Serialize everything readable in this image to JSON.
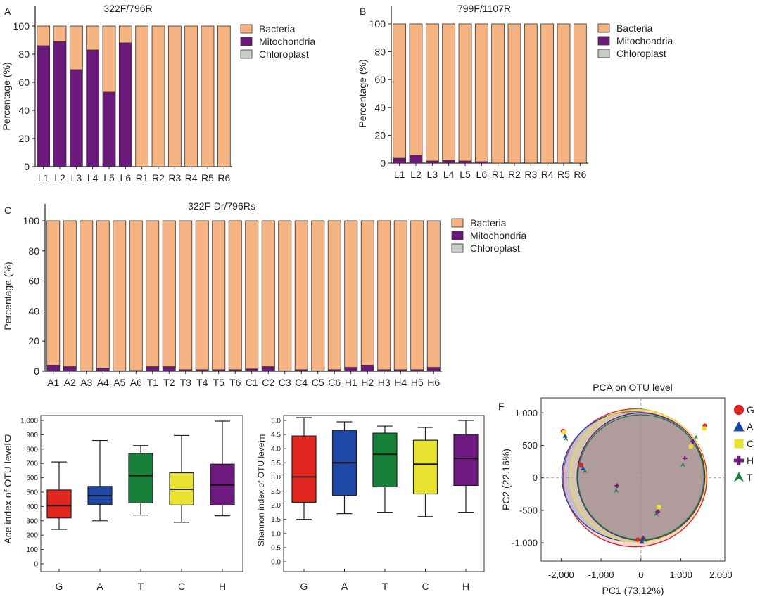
{
  "colors": {
    "bacteria": "#F5B482",
    "mitochondria": "#6B1A7C",
    "chloroplast": "#C7CCC7",
    "G": "#E0261E",
    "A": "#1F48A6",
    "T": "#17813A",
    "C": "#E8E230",
    "H": "#6E1A80",
    "ellipse_G": "#E8898B",
    "ellipse_A": "#6E88C7",
    "ellipse_C": "#F1E07A",
    "ellipse_H": "#8E6CA0",
    "ellipse_T": "#9E8A80"
  },
  "chart_data": [
    {
      "panel": "A",
      "type": "bar",
      "stacked": true,
      "title": "322F/796R",
      "ylabel": "Percentage (%)",
      "xlabel": "",
      "ylim": [
        0,
        100
      ],
      "yticks": [
        "0",
        "20",
        "40",
        "60",
        "80",
        "100"
      ],
      "categories": [
        "L1",
        "L2",
        "L3",
        "L4",
        "L5",
        "L6",
        "R1",
        "R2",
        "R3",
        "R4",
        "R5",
        "R6"
      ],
      "series": [
        {
          "name": "Chloroplast",
          "values": [
            0,
            0,
            0,
            0,
            0,
            0,
            0,
            0,
            0,
            0,
            0,
            0
          ]
        },
        {
          "name": "Mitochondria",
          "values": [
            86,
            89,
            69,
            83,
            53,
            88,
            0,
            0,
            0,
            0,
            0,
            0
          ]
        },
        {
          "name": "Bacteria",
          "values": [
            14,
            11,
            31,
            17,
            47,
            12,
            100,
            100,
            100,
            100,
            100,
            100
          ]
        }
      ],
      "legend": [
        "Bacteria",
        "Mitochondria",
        "Chloroplast"
      ]
    },
    {
      "panel": "B",
      "type": "bar",
      "stacked": true,
      "title": "799F/1107R",
      "ylabel": "Percentage (%)",
      "xlabel": "",
      "ylim": [
        0,
        100
      ],
      "yticks": [
        "0",
        "20",
        "40",
        "60",
        "80",
        "100"
      ],
      "categories": [
        "L1",
        "L2",
        "L3",
        "L4",
        "L5",
        "L6",
        "R1",
        "R2",
        "R3",
        "R4",
        "R5",
        "R6"
      ],
      "series": [
        {
          "name": "Chloroplast",
          "values": [
            0,
            0,
            0,
            0,
            0,
            0,
            0,
            0,
            0,
            0,
            0,
            0
          ]
        },
        {
          "name": "Mitochondria",
          "values": [
            3.5,
            5.5,
            1.5,
            2,
            1.5,
            1,
            0,
            0,
            0,
            0,
            0,
            0
          ]
        },
        {
          "name": "Bacteria",
          "values": [
            96.5,
            94.5,
            98.5,
            98,
            98.5,
            99,
            100,
            100,
            100,
            100,
            100,
            100
          ]
        }
      ],
      "legend": [
        "Bacteria",
        "Mitochondria",
        "Chloroplast"
      ]
    },
    {
      "panel": "C",
      "type": "bar",
      "stacked": true,
      "title": "322F-Dr/796Rs",
      "ylabel": "Percentage (%)",
      "xlabel": "",
      "ylim": [
        0,
        100
      ],
      "yticks": [
        "0",
        "20",
        "40",
        "60",
        "80",
        "100"
      ],
      "categories": [
        "A1",
        "A2",
        "A3",
        "A4",
        "A5",
        "A6",
        "T1",
        "T2",
        "T3",
        "T4",
        "T5",
        "T6",
        "C1",
        "C2",
        "C3",
        "C4",
        "C5",
        "C6",
        "H1",
        "H2",
        "H3",
        "H4",
        "H5",
        "H6"
      ],
      "series": [
        {
          "name": "Chloroplast",
          "values": [
            0,
            0,
            0,
            0,
            0,
            0,
            0,
            0,
            0,
            0,
            0,
            0,
            0,
            0,
            0,
            0,
            0,
            0,
            0,
            0,
            0,
            0,
            0,
            0
          ]
        },
        {
          "name": "Mitochondria",
          "values": [
            4,
            3,
            0.3,
            2,
            0.3,
            0.5,
            3,
            3,
            1,
            1,
            1,
            1,
            1.5,
            3,
            0.3,
            1,
            0.3,
            1,
            2.5,
            4,
            1,
            1,
            1,
            2.5
          ]
        },
        {
          "name": "Bacteria",
          "values": [
            96,
            97,
            99.7,
            98,
            99.7,
            99.5,
            97,
            97,
            99,
            99,
            99,
            99,
            98.5,
            97,
            99.7,
            99,
            99.7,
            99,
            97.5,
            96,
            99,
            99,
            99,
            97.5
          ]
        }
      ],
      "legend": [
        "Bacteria",
        "Mitochondria",
        "Chloroplast"
      ]
    },
    {
      "panel": "D",
      "type": "box",
      "title": "",
      "ylabel": "Ace index of OTU level",
      "xlabel": "",
      "ylim": [
        0,
        1000
      ],
      "yticks": [
        "0",
        "100",
        "200",
        "300",
        "400",
        "500",
        "600",
        "700",
        "800",
        "900",
        "1,000"
      ],
      "categories": [
        "G",
        "A",
        "T",
        "C",
        "H"
      ],
      "boxes": [
        {
          "min": 240,
          "q1": 320,
          "median": 405,
          "q3": 515,
          "max": 710
        },
        {
          "min": 300,
          "q1": 415,
          "median": 475,
          "q3": 540,
          "max": 860
        },
        {
          "min": 340,
          "q1": 425,
          "median": 615,
          "q3": 770,
          "max": 825
        },
        {
          "min": 290,
          "q1": 410,
          "median": 520,
          "q3": 635,
          "max": 895
        },
        {
          "min": 335,
          "q1": 410,
          "median": 550,
          "q3": 695,
          "max": 995
        }
      ]
    },
    {
      "panel": "E",
      "type": "box",
      "title": "",
      "ylabel": "Shannon index of OTU level",
      "xlabel": "",
      "ylim": [
        0,
        5.0
      ],
      "yticks": [
        "0.0",
        "0.5",
        "1.0",
        "1.5",
        "2.0",
        "2.5",
        "3.0",
        "3.5",
        "4.0",
        "4.5",
        "5.0"
      ],
      "categories": [
        "G",
        "A",
        "T",
        "C",
        "H"
      ],
      "boxes": [
        {
          "min": 1.5,
          "q1": 2.1,
          "median": 3.0,
          "q3": 4.45,
          "max": 5.1
        },
        {
          "min": 1.7,
          "q1": 2.35,
          "median": 3.5,
          "q3": 4.65,
          "max": 4.95
        },
        {
          "min": 1.75,
          "q1": 2.65,
          "median": 3.8,
          "q3": 4.55,
          "max": 4.8
        },
        {
          "min": 1.6,
          "q1": 2.4,
          "median": 3.45,
          "q3": 4.3,
          "max": 4.75
        },
        {
          "min": 1.75,
          "q1": 2.7,
          "median": 3.65,
          "q3": 4.5,
          "max": 5.0
        }
      ]
    },
    {
      "panel": "F",
      "type": "scatter",
      "title": "PCA on OTU level",
      "xlabel": "PC1 (73.12%)",
      "ylabel": "PC2 (22.16%)",
      "xlim": [
        -2500,
        2100
      ],
      "ylim": [
        -1280,
        1230
      ],
      "xticks": [
        "-2,000",
        "-1,000",
        "0",
        "1,000",
        "2,000"
      ],
      "xtick_values": [
        -2000,
        -1000,
        0,
        1000,
        2000
      ],
      "yticks": [
        "-1,000",
        "-500",
        "0",
        "500",
        "1,000"
      ],
      "ytick_values": [
        -1000,
        -500,
        0,
        500,
        1000
      ],
      "groups": [
        "G",
        "A",
        "C",
        "H",
        "T"
      ],
      "ellipses": [
        {
          "group": "G",
          "cx": -150,
          "cy": 0,
          "rx": 1800,
          "ry": 1060
        },
        {
          "group": "A",
          "cx": -200,
          "cy": 20,
          "rx": 1780,
          "ry": 1000
        },
        {
          "group": "C",
          "cx": -80,
          "cy": 30,
          "rx": 1700,
          "ry": 1020
        },
        {
          "group": "H",
          "cx": 0,
          "cy": 20,
          "rx": 1600,
          "ry": 980
        },
        {
          "group": "T",
          "cx": 0,
          "cy": 10,
          "rx": 1580,
          "ry": 960
        }
      ],
      "points": [
        {
          "group": "G",
          "x": -1950,
          "y": 720
        },
        {
          "group": "A",
          "x": -1900,
          "y": 650
        },
        {
          "group": "C",
          "x": -1920,
          "y": 700
        },
        {
          "group": "T",
          "x": -1880,
          "y": 600
        },
        {
          "group": "G",
          "x": -1500,
          "y": 200
        },
        {
          "group": "A",
          "x": -1450,
          "y": 150
        },
        {
          "group": "T",
          "x": -1400,
          "y": 100
        },
        {
          "group": "H",
          "x": -600,
          "y": -120
        },
        {
          "group": "T",
          "x": -620,
          "y": -200
        },
        {
          "group": "G",
          "x": -80,
          "y": -950
        },
        {
          "group": "A",
          "x": 20,
          "y": -980
        },
        {
          "group": "H",
          "x": 60,
          "y": -930
        },
        {
          "group": "T",
          "x": 100,
          "y": -960
        },
        {
          "group": "C",
          "x": 450,
          "y": -450
        },
        {
          "group": "T",
          "x": 380,
          "y": -560
        },
        {
          "group": "H",
          "x": 420,
          "y": -520
        },
        {
          "group": "H",
          "x": 1100,
          "y": 300
        },
        {
          "group": "T",
          "x": 1050,
          "y": 200
        },
        {
          "group": "C",
          "x": 1250,
          "y": 480
        },
        {
          "group": "H",
          "x": 1300,
          "y": 560
        },
        {
          "group": "T",
          "x": 1380,
          "y": 620
        },
        {
          "group": "G",
          "x": 1600,
          "y": 800
        },
        {
          "group": "C",
          "x": 1580,
          "y": 760
        }
      ]
    }
  ],
  "panel_labels": [
    "A",
    "B",
    "C",
    "D",
    "E",
    "F"
  ]
}
